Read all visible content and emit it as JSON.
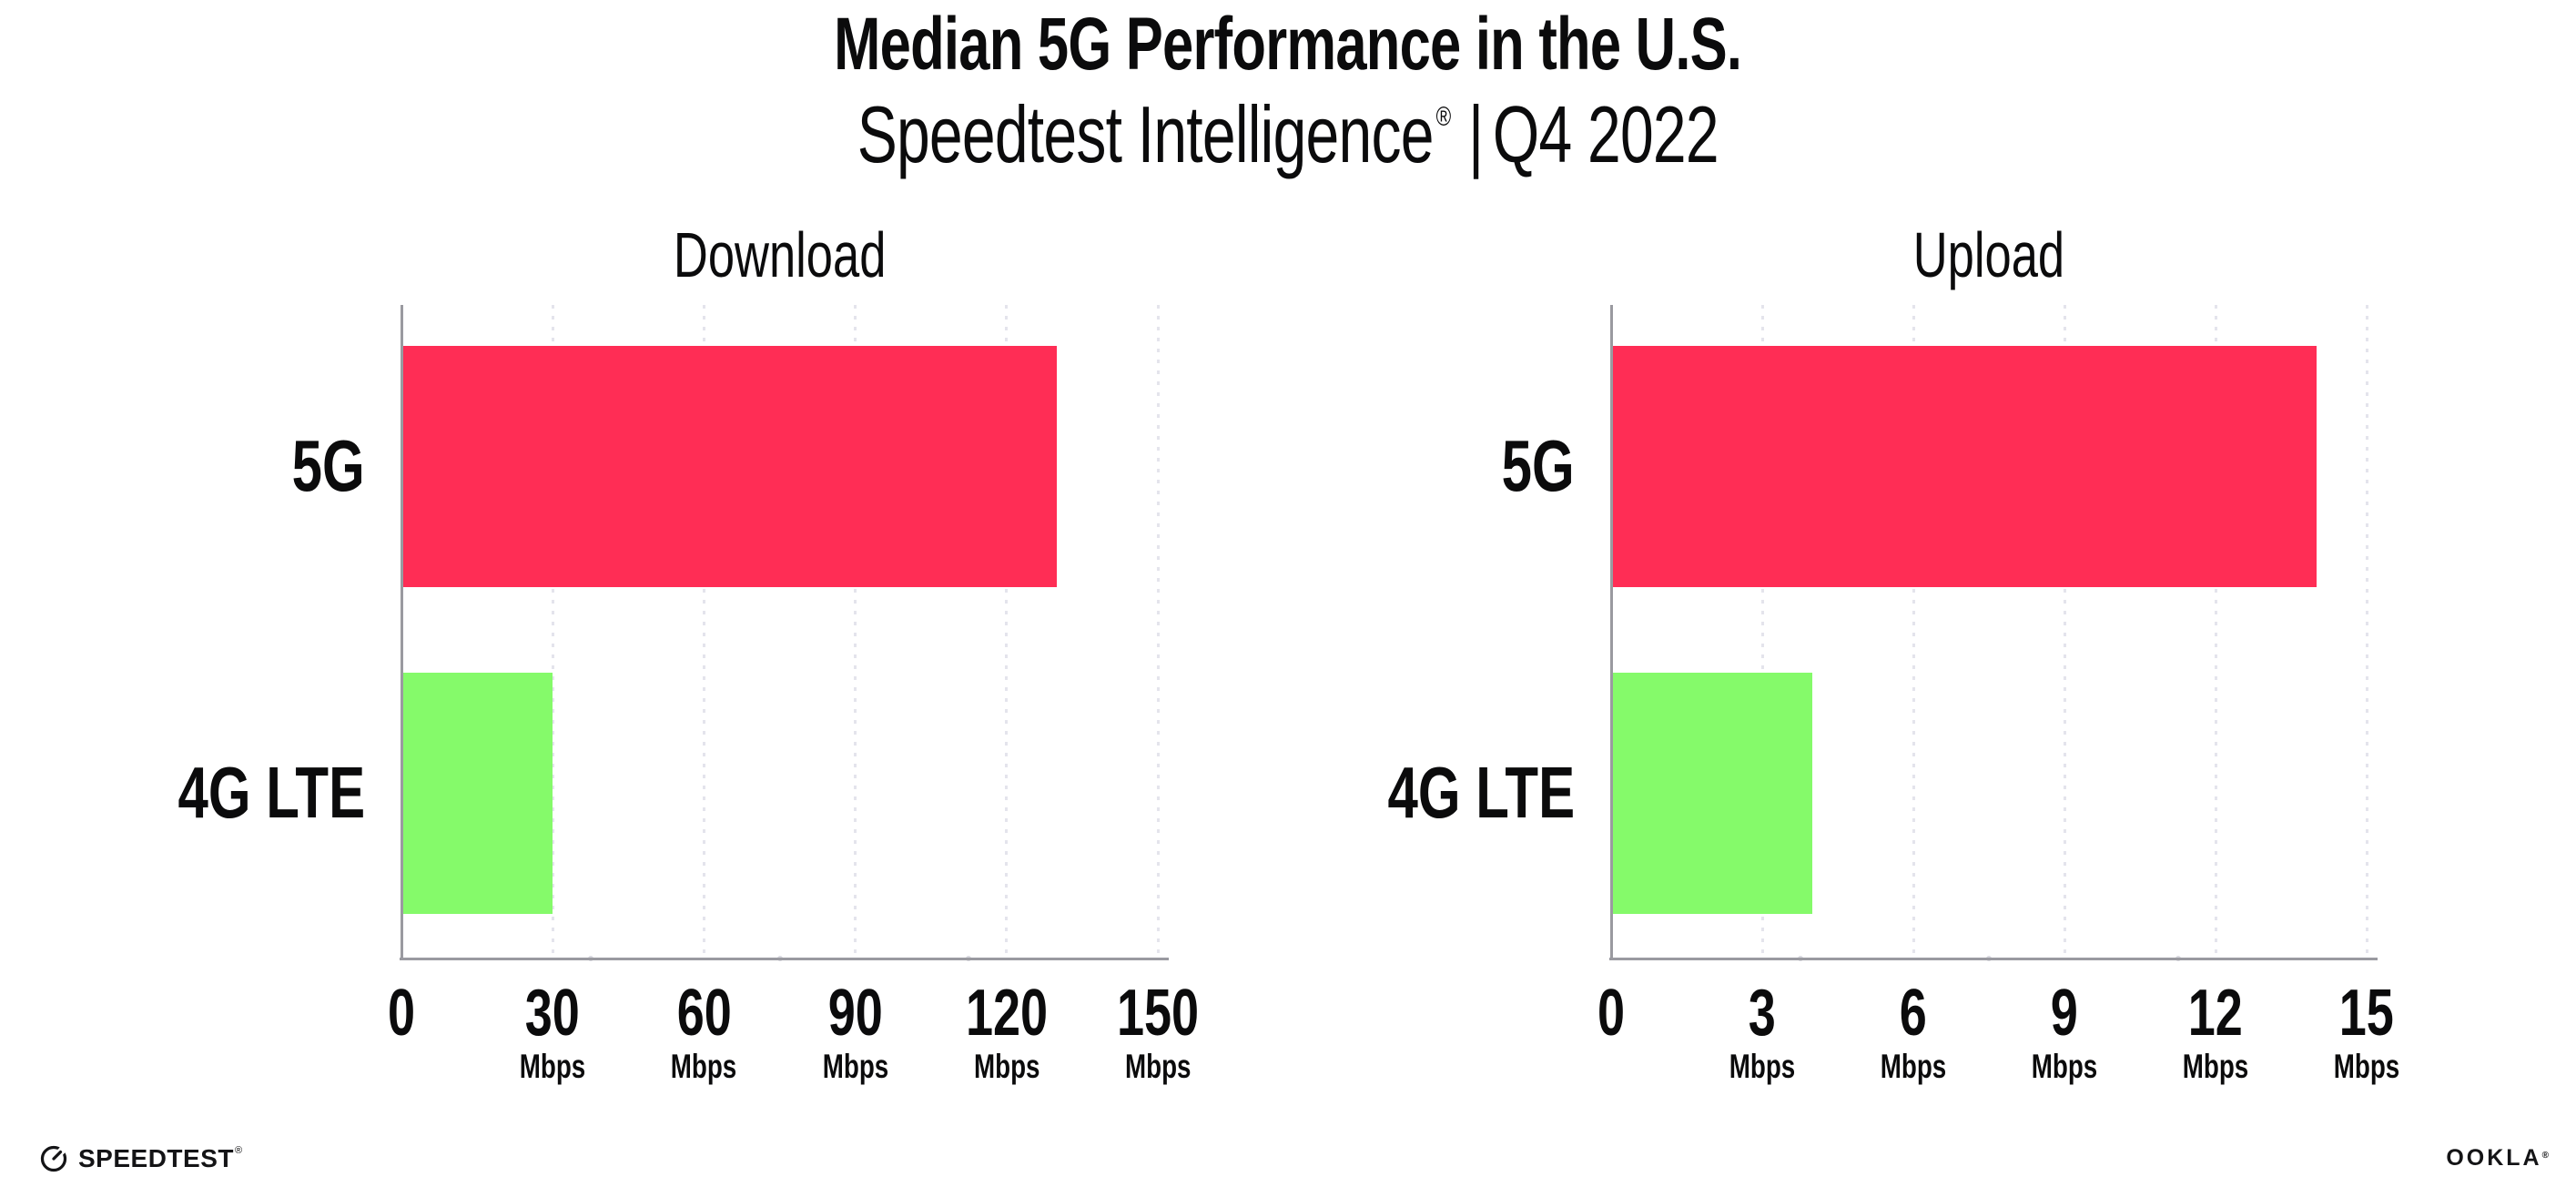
{
  "header": {
    "title": "Median 5G Performance in the U.S.",
    "subtitle": {
      "brand": "Speedtest Intelligence",
      "mark": "®",
      "separator": "|",
      "period": "Q4 2022"
    }
  },
  "footer": {
    "speedtest": "SPEEDTEST",
    "speedtest_mark": "®",
    "ookla": "OOKLA",
    "ookla_mark": "®"
  },
  "colors": {
    "bar_5g": "#FF2D55",
    "bar_4g_lte": "#85FA6A",
    "axis": "#9A9AA0",
    "gridline": "#E4E4EC",
    "text": "#0B0B0C",
    "background": "#FFFFFF"
  },
  "chart_data": [
    {
      "type": "bar",
      "orientation": "horizontal",
      "title": "Download",
      "categories": [
        "5G",
        "4G LTE"
      ],
      "values": [
        130,
        30
      ],
      "xtick_unit": "Mbps",
      "xlabel": "",
      "ylabel": "",
      "xlim": [
        0,
        150
      ],
      "xticks": [
        0,
        30,
        60,
        90,
        120,
        150
      ],
      "grid": "dotted vertical gridlines at ticks",
      "legend": "none",
      "bar_colors": [
        "#FF2D55",
        "#85FA6A"
      ]
    },
    {
      "type": "bar",
      "orientation": "horizontal",
      "title": "Upload",
      "categories": [
        "5G",
        "4G LTE"
      ],
      "values": [
        14,
        4
      ],
      "xtick_unit": "Mbps",
      "xlabel": "",
      "ylabel": "",
      "xlim": [
        0,
        15
      ],
      "xticks": [
        0,
        3,
        6,
        9,
        12,
        15
      ],
      "grid": "dotted vertical gridlines at ticks",
      "legend": "none",
      "bar_colors": [
        "#FF2D55",
        "#85FA6A"
      ]
    }
  ]
}
